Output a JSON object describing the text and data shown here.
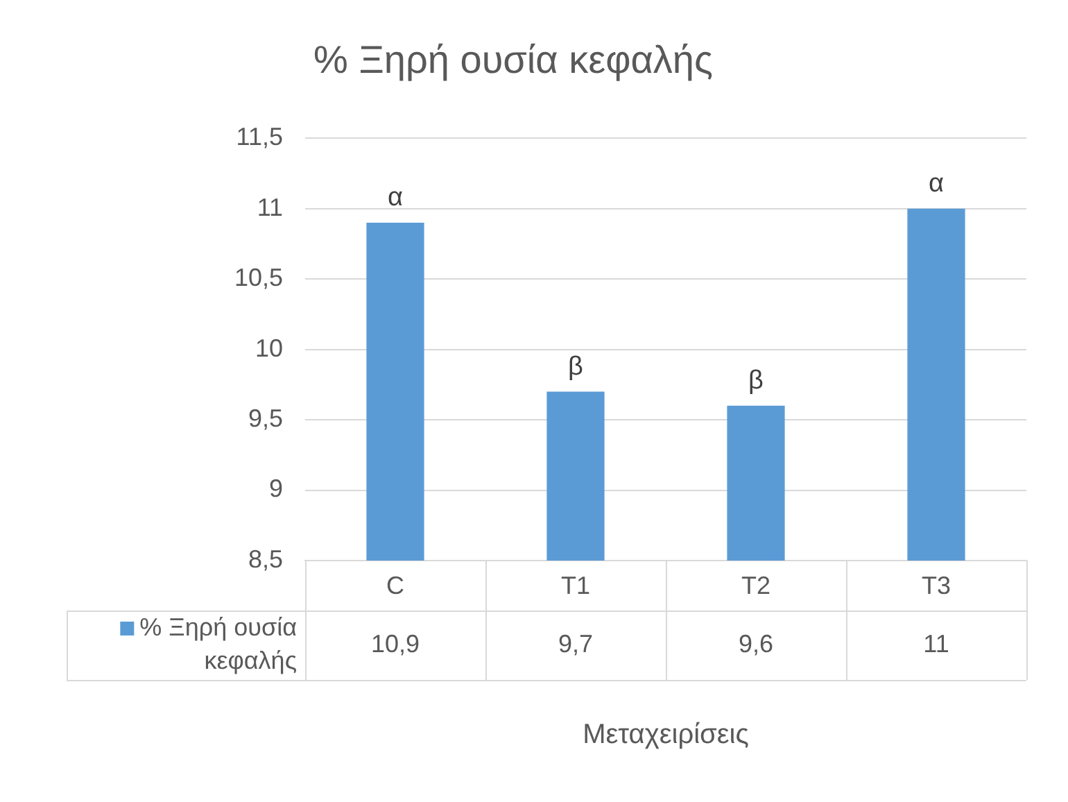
{
  "chart_data": {
    "type": "bar",
    "title": "% Ξηρή ουσία κεφαλής",
    "xlabel": "Μεταχειρίσεις",
    "categories": [
      "C",
      "T1",
      "T2",
      "T3"
    ],
    "series": [
      {
        "name": "% Ξηρή ουσία κεφαλής",
        "color": "#5b9bd5",
        "values": [
          10.9,
          9.7,
          9.6,
          11
        ],
        "value_labels": [
          "10,9",
          "9,7",
          "9,6",
          "11"
        ]
      }
    ],
    "ylim": [
      8.5,
      11.5
    ],
    "yticks": [
      {
        "value": 8.5,
        "label": "8,5"
      },
      {
        "value": 9,
        "label": "9"
      },
      {
        "value": 9.5,
        "label": "9,5"
      },
      {
        "value": 10,
        "label": "10"
      },
      {
        "value": 10.5,
        "label": "10,5"
      },
      {
        "value": 11,
        "label": "11"
      },
      {
        "value": 11.5,
        "label": "11,5"
      }
    ],
    "grid": "y",
    "legend": "bottom",
    "annotations": [
      {
        "text": "α",
        "x": "C",
        "y": 10.9
      },
      {
        "text": "β",
        "x": "T1",
        "y": 9.7
      },
      {
        "text": "β",
        "x": "T2",
        "y": 9.6
      },
      {
        "text": "α",
        "x": "T3",
        "y": 11
      }
    ]
  }
}
